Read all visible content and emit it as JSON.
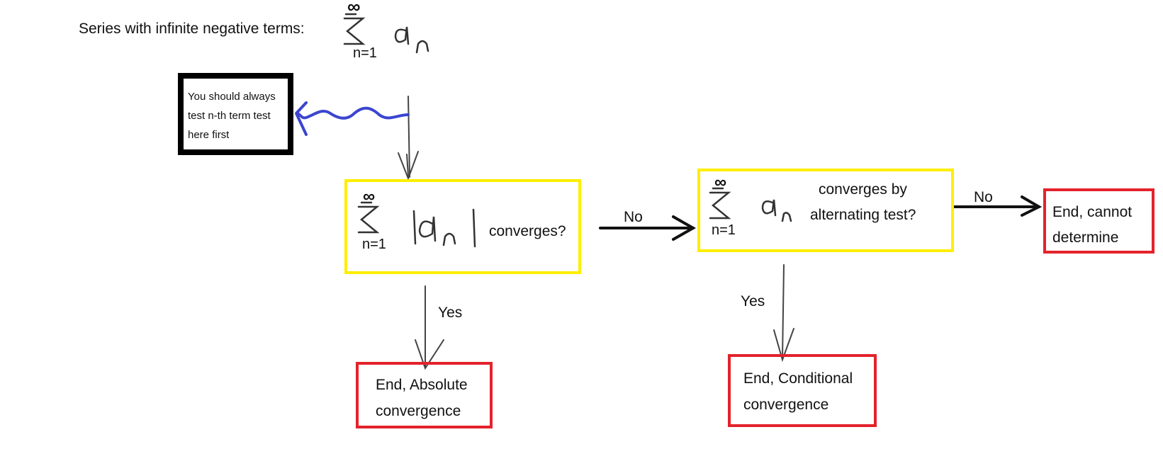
{
  "title": {
    "label": "Series with infinite negative terms:",
    "sum_top": "∞",
    "sum_bottom": "n=1",
    "term": "a",
    "term_sub": "n"
  },
  "note": {
    "lines": [
      "You should always",
      "test n-th term test",
      "here first"
    ]
  },
  "abs_test": {
    "sum_top": "∞",
    "sum_bottom": "n=1",
    "term": "|a",
    "term_sub": "n",
    "term_close": "|",
    "question": "converges?"
  },
  "alt_test": {
    "sum_top": "∞",
    "sum_bottom": "n=1",
    "term": "a",
    "term_sub": "n",
    "question_line1": "converges by",
    "question_line2": "alternating test?"
  },
  "edges": {
    "abs_no": "No",
    "abs_yes": "Yes",
    "alt_no": "No",
    "alt_yes": "Yes"
  },
  "ends": {
    "absolute": [
      "End, Absolute",
      "convergence"
    ],
    "conditional": [
      "End, Conditional",
      "convergence"
    ],
    "cannot": [
      "End, cannot",
      "determine"
    ]
  },
  "colors": {
    "decision_border": "#ffee00",
    "end_border": "#e3222b",
    "note_border": "#000000",
    "squiggle": "#3b45d0"
  }
}
